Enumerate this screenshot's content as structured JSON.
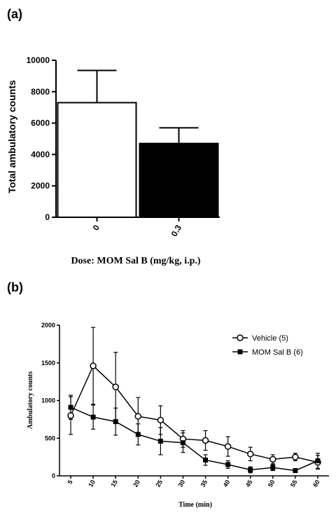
{
  "chart_data": [
    {
      "panel_label": "(a)",
      "type": "bar",
      "categories": [
        "0",
        "0.3"
      ],
      "values": [
        7300,
        4700
      ],
      "errors": [
        2050,
        1000
      ],
      "bar_colors": [
        "#ffffff",
        "#000000"
      ],
      "ylabel": "Total ambulatory counts",
      "xlabel": "Dose: MOM Sal B (mg/kg, i.p.)",
      "ylim": [
        0,
        10000
      ],
      "yticks": [
        0,
        2000,
        4000,
        6000,
        8000,
        10000
      ],
      "grid": false
    },
    {
      "panel_label": "(b)",
      "type": "line",
      "x": [
        5,
        10,
        15,
        20,
        25,
        30,
        35,
        40,
        45,
        50,
        55,
        60
      ],
      "series": [
        {
          "name": "Vehicle (5)",
          "marker": "open-circle",
          "values": [
            800,
            1460,
            1180,
            790,
            740,
            490,
            470,
            390,
            290,
            220,
            250,
            180
          ],
          "errors": [
            250,
            510,
            460,
            250,
            190,
            110,
            130,
            130,
            90,
            60,
            50,
            90
          ]
        },
        {
          "name": "MOM Sal B (6)",
          "marker": "filled-square",
          "values": [
            910,
            780,
            720,
            550,
            460,
            440,
            210,
            150,
            80,
            110,
            70,
            200
          ]
        }
      ],
      "xlabel": "Time (min)",
      "ylabel": "Ambulatory counts",
      "ylim": [
        0,
        2000
      ],
      "yticks": [
        0,
        500,
        1000,
        1500,
        2000
      ],
      "legend_position": "top-right",
      "grid": false,
      "series_b_errors": [
        160,
        160,
        180,
        140,
        180,
        130,
        70,
        50,
        40,
        40,
        20,
        100
      ]
    }
  ]
}
